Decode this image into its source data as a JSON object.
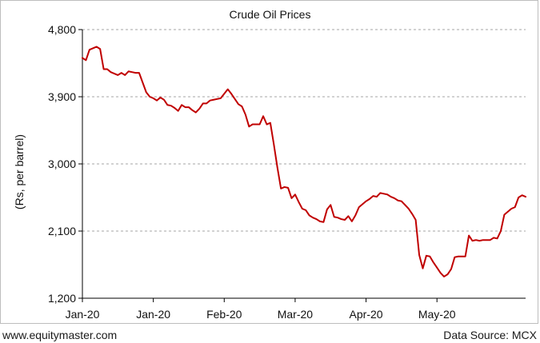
{
  "chart_data": {
    "type": "line",
    "title": "Crude Oil Prices",
    "ylabel": "(Rs, per barrel)",
    "xlabel": "",
    "ylim": [
      1200,
      4800
    ],
    "yticks": [
      "4,800",
      "3,900",
      "3,000",
      "2,100",
      "1,200"
    ],
    "ytick_values": [
      4800,
      3900,
      3000,
      2100,
      1200
    ],
    "xticks": [
      "Jan-20",
      "Jan-20",
      "Feb-20",
      "Mar-20",
      "Apr-20",
      "May-20"
    ],
    "xtick_index": [
      0,
      20,
      40,
      60,
      80,
      100
    ],
    "grid": true,
    "series_color": "#c00000",
    "series": [
      {
        "values": [
          4420,
          4390,
          4530,
          4550,
          4570,
          4540,
          4270,
          4270,
          4230,
          4210,
          4190,
          4220,
          4190,
          4240,
          4230,
          4220,
          4220,
          4090,
          3960,
          3900,
          3880,
          3850,
          3890,
          3860,
          3790,
          3780,
          3750,
          3710,
          3790,
          3760,
          3760,
          3720,
          3690,
          3740,
          3810,
          3810,
          3850,
          3860,
          3870,
          3880,
          3940,
          4000,
          3940,
          3870,
          3800,
          3770,
          3660,
          3500,
          3530,
          3530,
          3530,
          3640,
          3530,
          3550,
          3260,
          2950,
          2670,
          2690,
          2680,
          2540,
          2590,
          2490,
          2400,
          2380,
          2310,
          2280,
          2260,
          2230,
          2220,
          2390,
          2450,
          2290,
          2280,
          2260,
          2250,
          2300,
          2230,
          2310,
          2420,
          2460,
          2500,
          2530,
          2570,
          2560,
          2610,
          2600,
          2590,
          2560,
          2540,
          2510,
          2500,
          2450,
          2400,
          2330,
          2250,
          1780,
          1600,
          1770,
          1760,
          1680,
          1610,
          1540,
          1490,
          1520,
          1590,
          1750,
          1760,
          1760,
          1760,
          2040,
          1970,
          1980,
          1970,
          1980,
          1980,
          1980,
          2010,
          2000,
          2100,
          2320,
          2360,
          2400,
          2420,
          2550,
          2580,
          2560
        ]
      }
    ]
  },
  "footer": {
    "site": "www.equitymaster.com",
    "source": "Data Source: MCX"
  }
}
